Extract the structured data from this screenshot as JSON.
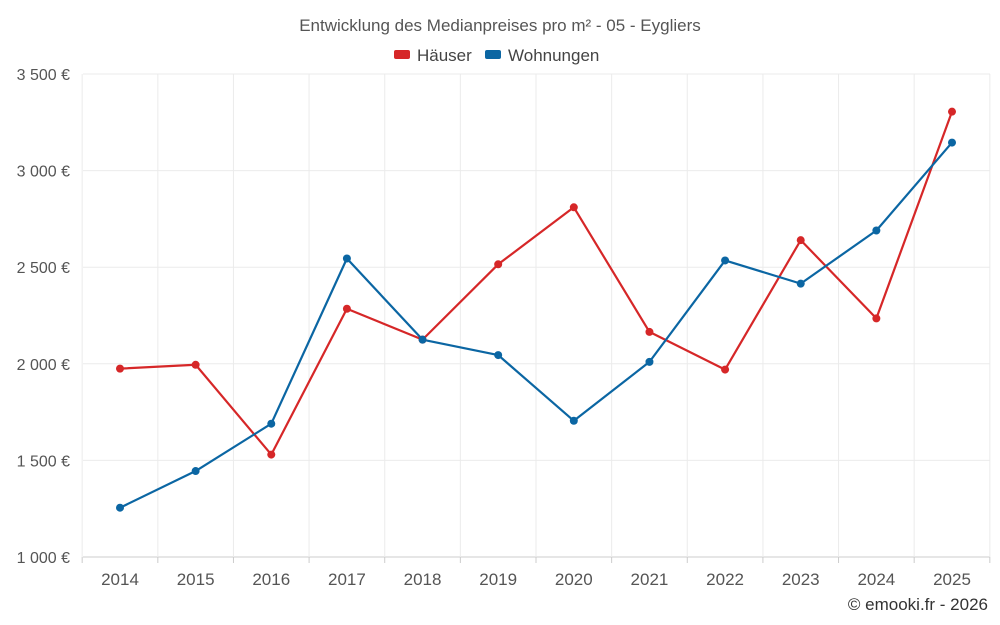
{
  "chart_data": {
    "type": "line",
    "title": "Entwicklung des Medianpreises pro m² - 05 - Eygliers",
    "x": [
      "2014",
      "2015",
      "2016",
      "2017",
      "2018",
      "2019",
      "2020",
      "2021",
      "2022",
      "2023",
      "2024",
      "2025"
    ],
    "series": [
      {
        "name": "Häuser",
        "color": "#d62728",
        "values": [
          1975,
          1995,
          1530,
          2285,
          2125,
          2515,
          2810,
          2165,
          1970,
          2640,
          2235,
          3305
        ]
      },
      {
        "name": "Wohnungen",
        "color": "#0b66a3",
        "values": [
          1255,
          1445,
          1690,
          2545,
          2125,
          2045,
          1705,
          2010,
          2535,
          2415,
          2690,
          3145
        ]
      }
    ],
    "y_ticks": [
      "1 000 €",
      "1 500 €",
      "2 000 €",
      "2 500 €",
      "3 000 €",
      "3 500 €"
    ],
    "y_tick_values": [
      1000,
      1500,
      2000,
      2500,
      3000,
      3500
    ],
    "ylim": [
      1000,
      3500
    ],
    "xlabel": "",
    "ylabel": "",
    "grid": true,
    "legend_position": "top-center"
  },
  "credit": "© emooki.fr - 2026"
}
